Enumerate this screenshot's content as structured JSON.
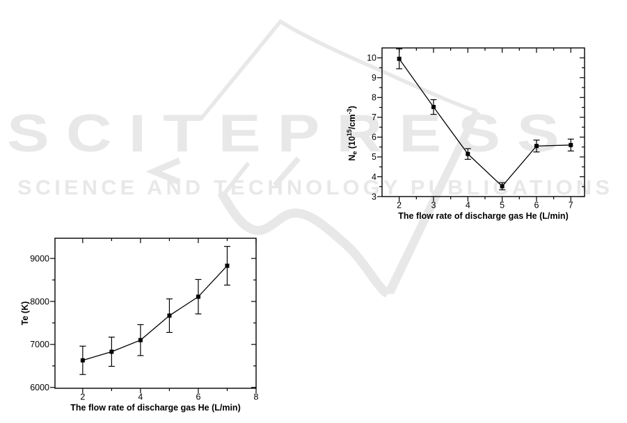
{
  "watermark": {
    "logo_text": "SCITEPRESS",
    "tagline": "SCIENCE AND TECHNOLOGY PUBLICATIONS",
    "color": "#e8e8e8"
  },
  "chart_data": [
    {
      "id": "ne-chart",
      "type": "line",
      "title": "",
      "xlabel": "The flow rate of discharge gas He (L/min)",
      "ylabel": "Ne (10^15/cm^-3)",
      "ylabel_rich": [
        {
          "t": "N"
        },
        {
          "t": "e",
          "style": "sub"
        },
        {
          "t": " (10"
        },
        {
          "t": "15",
          "style": "sup"
        },
        {
          "t": "/cm"
        },
        {
          "t": "-3",
          "style": "sup"
        },
        {
          "t": ")"
        }
      ],
      "x": [
        2,
        3,
        4,
        5,
        6,
        7
      ],
      "y": [
        9.95,
        7.52,
        5.15,
        3.52,
        5.55,
        5.6
      ],
      "yerr": [
        0.5,
        0.37,
        0.27,
        0.18,
        0.3,
        0.3
      ],
      "xlim": [
        1.5,
        7.4
      ],
      "ylim": [
        3,
        10.5
      ],
      "xticks": [
        2,
        3,
        4,
        5,
        6,
        7
      ],
      "xticks_minor": [
        2.5,
        3.5,
        4.5,
        5.5,
        6.5
      ],
      "yticks": [
        3,
        4,
        5,
        6,
        7,
        8,
        9,
        10
      ],
      "yticks_minor": [
        3.5,
        4.5,
        5.5,
        6.5,
        7.5,
        8.5,
        9.5
      ],
      "marker": "filled-square",
      "error_bars": true,
      "line_color": "#000000",
      "grid": false,
      "legend": null
    },
    {
      "id": "te-chart",
      "type": "line",
      "title": "",
      "xlabel": "The flow rate of discharge gas He (L/min)",
      "ylabel": "Te (K)",
      "ylabel_rich": [
        {
          "t": "Te (K)"
        }
      ],
      "x": [
        2,
        3,
        4,
        5,
        6,
        7
      ],
      "y": [
        6630,
        6830,
        7100,
        7670,
        8110,
        8830
      ],
      "yerr": [
        330,
        340,
        360,
        390,
        400,
        450
      ],
      "xlim": [
        1.04,
        8
      ],
      "ylim": [
        5980,
        9470
      ],
      "xticks": [
        2,
        4,
        6,
        8
      ],
      "xticks_minor": [
        3,
        5,
        7
      ],
      "yticks": [
        6000,
        7000,
        8000,
        9000
      ],
      "yticks_minor": [
        6500,
        7500,
        8500
      ],
      "marker": "filled-square",
      "error_bars": true,
      "line_color": "#000000",
      "grid": false,
      "legend": null
    }
  ]
}
